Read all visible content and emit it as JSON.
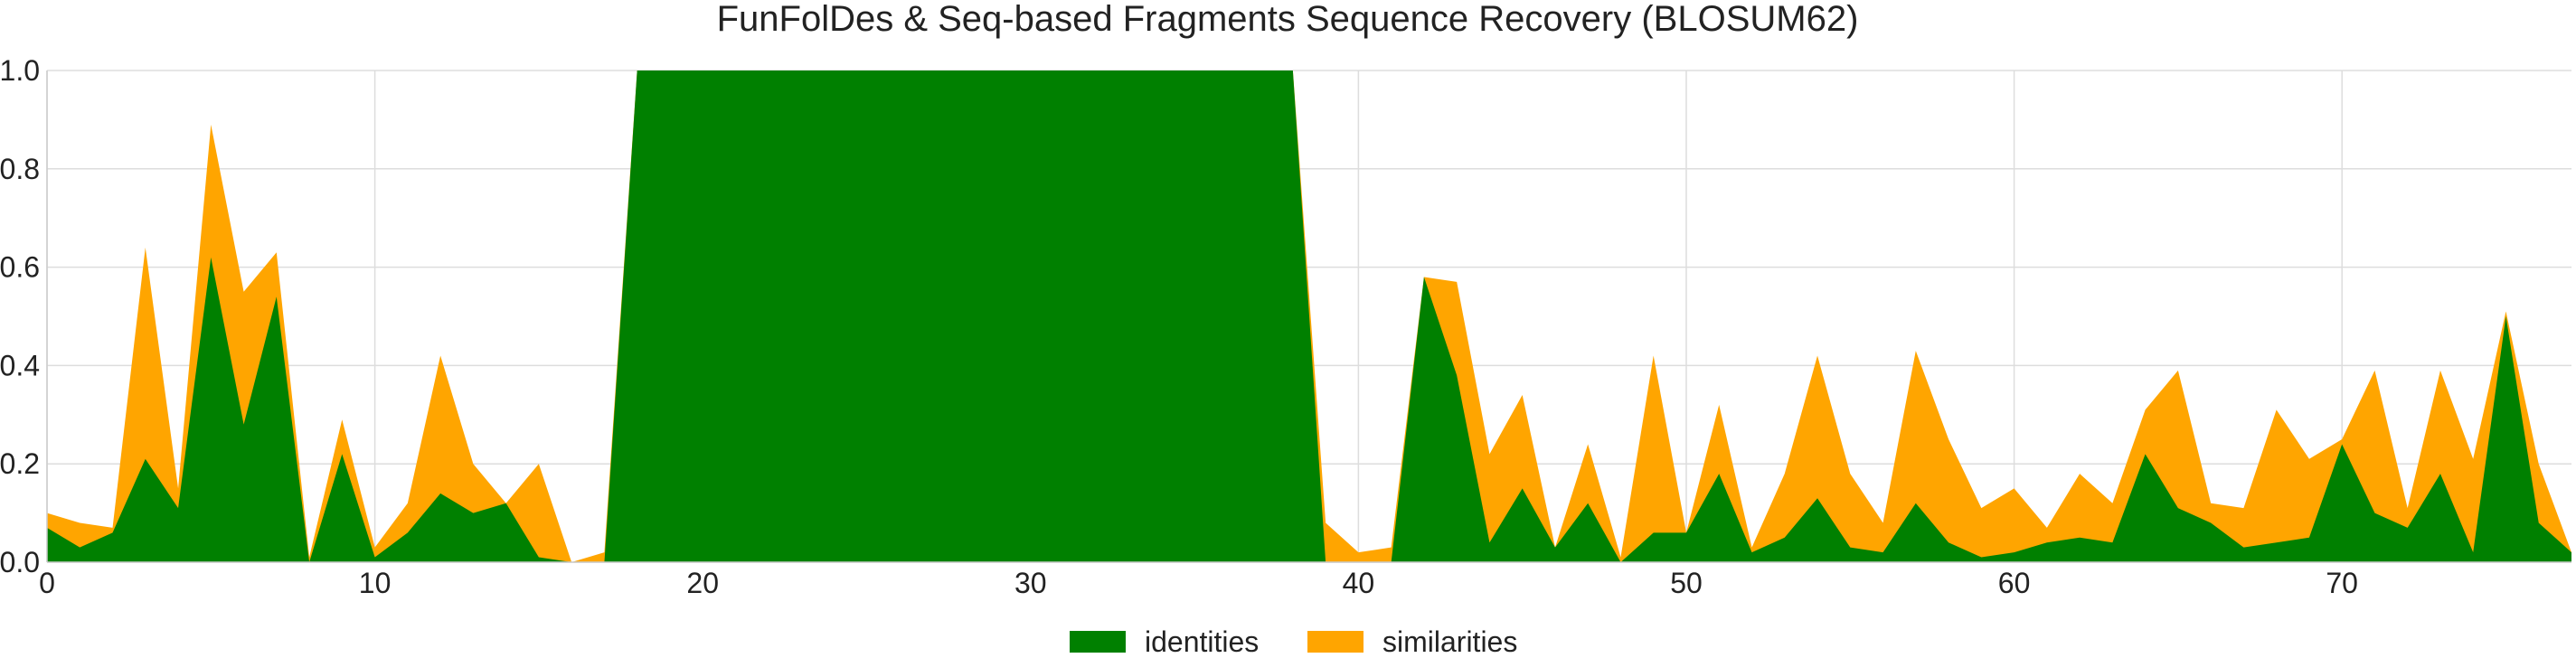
{
  "chart_data": {
    "type": "area",
    "title": "FunFolDes & Seq-based Fragments Sequence Recovery (BLOSUM62)",
    "xlabel": "",
    "ylabel": "",
    "xlim": [
      0,
      77
    ],
    "ylim": [
      0,
      1.0
    ],
    "xticks": [
      0,
      10,
      20,
      30,
      40,
      50,
      60,
      70
    ],
    "yticks": [
      0.0,
      0.2,
      0.4,
      0.6,
      0.8,
      1.0
    ],
    "ytick_labels": [
      "0.0",
      "0.2",
      "0.4",
      "0.6",
      "0.8",
      "1.0"
    ],
    "grid": true,
    "stacked": false,
    "legend_position": "bottom-center",
    "x": [
      0,
      1,
      2,
      3,
      4,
      5,
      6,
      7,
      8,
      9,
      10,
      11,
      12,
      13,
      14,
      15,
      16,
      17,
      18,
      19,
      20,
      21,
      22,
      23,
      24,
      25,
      26,
      27,
      28,
      29,
      30,
      31,
      32,
      33,
      34,
      35,
      36,
      37,
      38,
      39,
      40,
      41,
      42,
      43,
      44,
      45,
      46,
      47,
      48,
      49,
      50,
      51,
      52,
      53,
      54,
      55,
      56,
      57,
      58,
      59,
      60,
      61,
      62,
      63,
      64,
      65,
      66,
      67,
      68,
      69,
      70,
      71,
      72,
      73,
      74,
      75,
      76,
      77
    ],
    "series": [
      {
        "name": "similarities",
        "color": "#ffa500",
        "values": [
          0.1,
          0.08,
          0.07,
          0.64,
          0.15,
          0.89,
          0.55,
          0.63,
          0.01,
          0.29,
          0.03,
          0.12,
          0.42,
          0.2,
          0.12,
          0.2,
          0.0,
          0.02,
          1.0,
          1.0,
          1.0,
          1.0,
          1.0,
          1.0,
          1.0,
          1.0,
          1.0,
          1.0,
          1.0,
          1.0,
          1.0,
          1.0,
          1.0,
          1.0,
          1.0,
          1.0,
          1.0,
          1.0,
          1.0,
          0.08,
          0.02,
          0.03,
          0.58,
          0.57,
          0.22,
          0.34,
          0.03,
          0.24,
          0.01,
          0.42,
          0.06,
          0.32,
          0.03,
          0.18,
          0.42,
          0.18,
          0.08,
          0.43,
          0.25,
          0.11,
          0.15,
          0.07,
          0.18,
          0.12,
          0.31,
          0.39,
          0.12,
          0.11,
          0.31,
          0.21,
          0.25,
          0.39,
          0.11,
          0.39,
          0.21,
          0.51,
          0.2,
          0.02
        ]
      },
      {
        "name": "identities",
        "color": "#008000",
        "values": [
          0.07,
          0.03,
          0.06,
          0.21,
          0.11,
          0.62,
          0.28,
          0.54,
          0.0,
          0.22,
          0.01,
          0.06,
          0.14,
          0.1,
          0.12,
          0.01,
          0.0,
          0.0,
          1.0,
          1.0,
          1.0,
          1.0,
          1.0,
          1.0,
          1.0,
          1.0,
          1.0,
          1.0,
          1.0,
          1.0,
          1.0,
          1.0,
          1.0,
          1.0,
          1.0,
          1.0,
          1.0,
          1.0,
          1.0,
          0.0,
          0.0,
          0.0,
          0.58,
          0.38,
          0.04,
          0.15,
          0.03,
          0.12,
          0.0,
          0.06,
          0.06,
          0.18,
          0.02,
          0.05,
          0.13,
          0.03,
          0.02,
          0.12,
          0.04,
          0.01,
          0.02,
          0.04,
          0.05,
          0.04,
          0.22,
          0.11,
          0.08,
          0.03,
          0.04,
          0.05,
          0.24,
          0.1,
          0.07,
          0.18,
          0.02,
          0.5,
          0.08,
          0.02
        ]
      }
    ],
    "legend": [
      {
        "label": "identities",
        "color": "#008000"
      },
      {
        "label": "similarities",
        "color": "#ffa500"
      }
    ],
    "grid_color": "#dddddd"
  }
}
